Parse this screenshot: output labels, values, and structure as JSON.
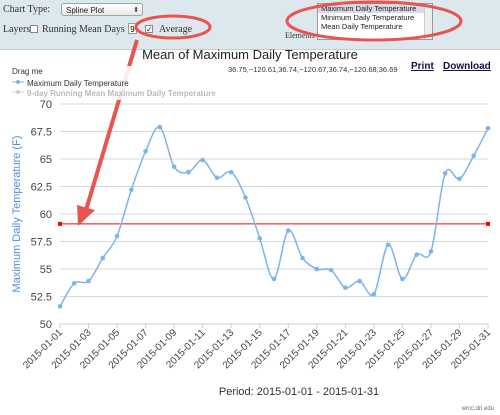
{
  "controls": {
    "chart_type_label": "Chart Type:",
    "chart_type_value": "Spline Plot",
    "layers_label": "Layers:",
    "running_mean_label": "Running Mean Days",
    "running_mean_days": "9",
    "running_mean_checked": "",
    "average_label": "Average",
    "average_checked": "✓",
    "elements_label": "Elements",
    "element_options": [
      "Maximum Daily Temperature",
      "Minimum Daily Temperature",
      "Mean Daily Temperature"
    ]
  },
  "coords_text": "36.75,−120.61,36.74,−120.67,36.74,−120.68,36.69",
  "print_label": "Print",
  "download_label": "Download",
  "legend": {
    "drag_label": "Drag me",
    "series1": "Maximum Daily Temperature",
    "series2": "9-day Running Mean Maximum Daily Temperature"
  },
  "footer": "wrcc.dri.edu",
  "colors": {
    "series": "#7cb5ec",
    "average": "#ff0000",
    "annotation": "#e8554e",
    "axis_label": "#4a90d9",
    "topbar": "#dce7ee"
  },
  "chart_data": {
    "type": "line",
    "title": "Mean of Maximum Daily Temperature",
    "xlabel": "Period: 2015-01-01 - 2015-01-31",
    "ylabel": "Maximum Daily Temperature (F)",
    "ylim": [
      50,
      70
    ],
    "yticks": [
      "50",
      "52.5",
      "55",
      "57.5",
      "60",
      "62.5",
      "65",
      "67.5",
      "70"
    ],
    "grid": "horizontal",
    "legend_position": "top-left",
    "x": [
      "2015-01-01",
      "2015-01-02",
      "2015-01-03",
      "2015-01-04",
      "2015-01-05",
      "2015-01-06",
      "2015-01-07",
      "2015-01-08",
      "2015-01-09",
      "2015-01-10",
      "2015-01-11",
      "2015-01-12",
      "2015-01-13",
      "2015-01-14",
      "2015-01-15",
      "2015-01-16",
      "2015-01-17",
      "2015-01-18",
      "2015-01-19",
      "2015-01-20",
      "2015-01-21",
      "2015-01-22",
      "2015-01-23",
      "2015-01-24",
      "2015-01-25",
      "2015-01-26",
      "2015-01-27",
      "2015-01-28",
      "2015-01-29",
      "2015-01-30",
      "2015-01-31"
    ],
    "xtick_labels": [
      "2015-01-01",
      "2015-01-03",
      "2015-01-05",
      "2015-01-07",
      "2015-01-09",
      "2015-01-11",
      "2015-01-13",
      "2015-01-15",
      "2015-01-17",
      "2015-01-19",
      "2015-01-21",
      "2015-01-23",
      "2015-01-25",
      "2015-01-27",
      "2015-01-29",
      "2015-01-31"
    ],
    "series": [
      {
        "name": "Maximum Daily Temperature",
        "values": [
          51.6,
          53.7,
          53.9,
          56.0,
          58.0,
          62.2,
          65.7,
          67.9,
          64.3,
          63.8,
          64.9,
          63.3,
          63.8,
          61.5,
          57.8,
          54.1,
          58.5,
          56.0,
          55.0,
          54.9,
          53.3,
          53.9,
          52.7,
          57.2,
          54.1,
          56.3,
          56.6,
          63.7,
          63.2,
          65.3,
          67.8
        ]
      }
    ],
    "average_line": 59.1
  }
}
